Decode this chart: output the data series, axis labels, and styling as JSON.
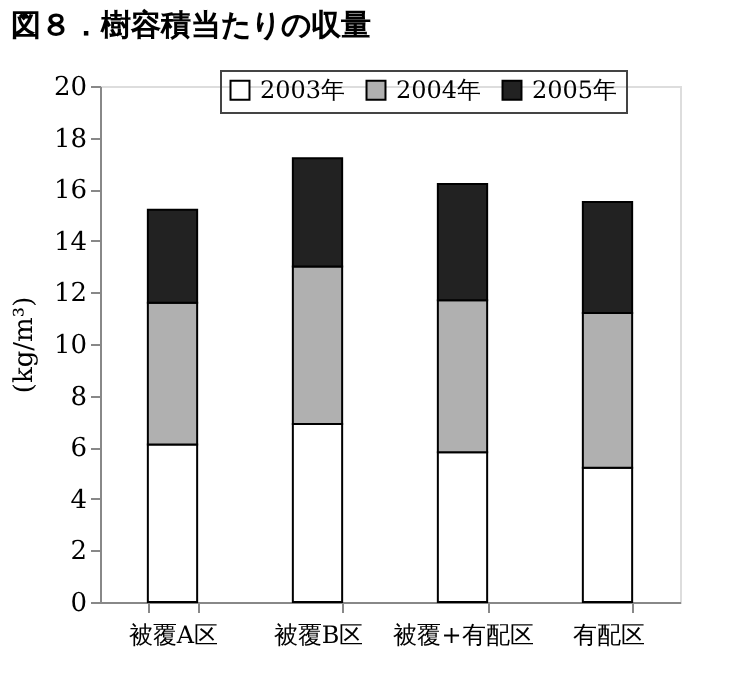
{
  "chart_data": {
    "type": "bar",
    "title": "図８．樹容積当たりの収量",
    "ylabel": "(kg/m³)",
    "categories": [
      "被覆A区",
      "被覆B区",
      "被覆+有配区",
      "有配区"
    ],
    "series": [
      {
        "name": "2003年",
        "color": "#ffffff",
        "values": [
          6.1,
          6.9,
          5.8,
          5.2
        ]
      },
      {
        "name": "2004年",
        "color": "#b0b0b0",
        "values": [
          5.5,
          6.1,
          5.9,
          6.0
        ]
      },
      {
        "name": "2005年",
        "color": "#222222",
        "values": [
          3.6,
          4.2,
          4.5,
          4.3
        ]
      }
    ],
    "stacked": true,
    "ylim": [
      0,
      20
    ],
    "yticks": [
      0,
      2,
      4,
      6,
      8,
      10,
      12,
      14,
      16,
      18,
      20
    ],
    "grid": false,
    "legend": "top"
  }
}
